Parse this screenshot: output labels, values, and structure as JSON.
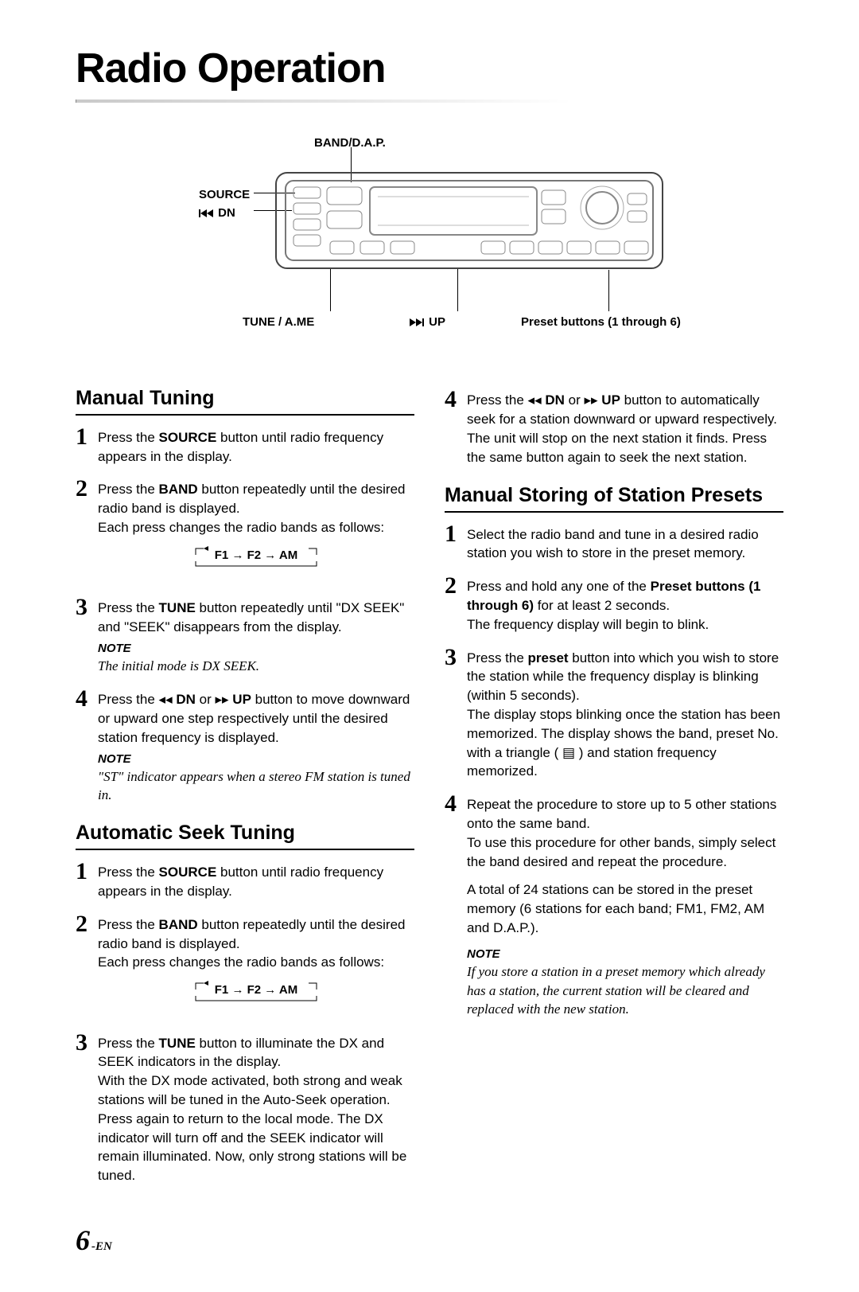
{
  "title": "Radio Operation",
  "diagram": {
    "labels": {
      "band": "BAND/D.A.P.",
      "source": "SOURCE",
      "dn": "DN",
      "tune": "TUNE / A.ME",
      "up": "UP",
      "preset": "Preset buttons (1 through 6)"
    }
  },
  "band_sequence": "F1 → F2 → AM",
  "sections": {
    "manual_tuning": {
      "title": "Manual Tuning",
      "steps": {
        "s1": "Press the <b>SOURCE</b> button until radio frequency appears in the display.",
        "s2": "Press the <b>BAND</b> button repeatedly until the desired radio band is displayed.<br>Each press changes the radio bands as follows:",
        "s3": "Press the <b>TUNE</b> button repeatedly until \"DX SEEK\" and \"SEEK\" disappears from the display.",
        "s3_note_label": "NOTE",
        "s3_note": "The initial mode is DX SEEK.",
        "s4": "Press the <span class='glyph-rewind'>◂◂</span> <b>DN</b> or <span class='glyph-fwd'>▸▸</span> <b>UP</b> button to move downward or upward one step respectively until the desired station frequency is displayed.",
        "s4_note_label": "NOTE",
        "s4_note": "\"ST\" indicator appears when a stereo FM station is tuned in."
      }
    },
    "auto_seek": {
      "title": "Automatic Seek Tuning",
      "steps": {
        "s1": "Press the <b>SOURCE</b> button until radio frequency appears in the display.",
        "s2": "Press the <b>BAND</b> button repeatedly until the desired radio band is displayed.<br>Each press changes the radio bands as follows:",
        "s3": "Press the <b>TUNE</b> button to illuminate the DX and SEEK indicators in the display.<br>With the DX mode activated, both strong and weak stations will be tuned in the Auto-Seek operation.<br>Press again to return to the local mode. The DX indicator will turn off and the SEEK indicator will remain illuminated. Now, only strong stations will be tuned.",
        "s4": "Press the <span class='glyph-rewind'>◂◂</span> <b>DN</b> or <span class='glyph-fwd'>▸▸</span> <b>UP</b> button to automatically seek for a station downward or upward respectively.<br>The unit will stop on the next station it finds. Press the same button again to seek the next station."
      }
    },
    "manual_store": {
      "title": "Manual Storing of Station Presets",
      "steps": {
        "s1": "Select the radio band and tune in a desired radio station you wish to store in the preset memory.",
        "s2": "Press and hold any one of the <b>Preset buttons (1 through 6)</b> for at least 2 seconds.<br>The frequency display will begin to blink.",
        "s3": "Press the <b>preset</b> button into which you wish to store the station while the frequency display is blinking (within 5 seconds).<br>The display stops blinking once the station has been memorized. The display shows the band, preset No. with a triangle (&nbsp;▤&nbsp;) and station frequency memorized.",
        "s4": "Repeat the procedure to store up to 5 other stations onto the same band.<br>To use this procedure for other bands, simply select the band desired and repeat the procedure.",
        "s4_extra": "A total of 24 stations can be stored in the preset memory (6 stations for each band; FM1, FM2, AM and D.A.P.).",
        "note_label": "NOTE",
        "note": "If you store a station in a preset memory which already has a station, the current station will be cleared and replaced with the new station."
      }
    }
  },
  "page_no": "6",
  "page_suffix": "-EN"
}
